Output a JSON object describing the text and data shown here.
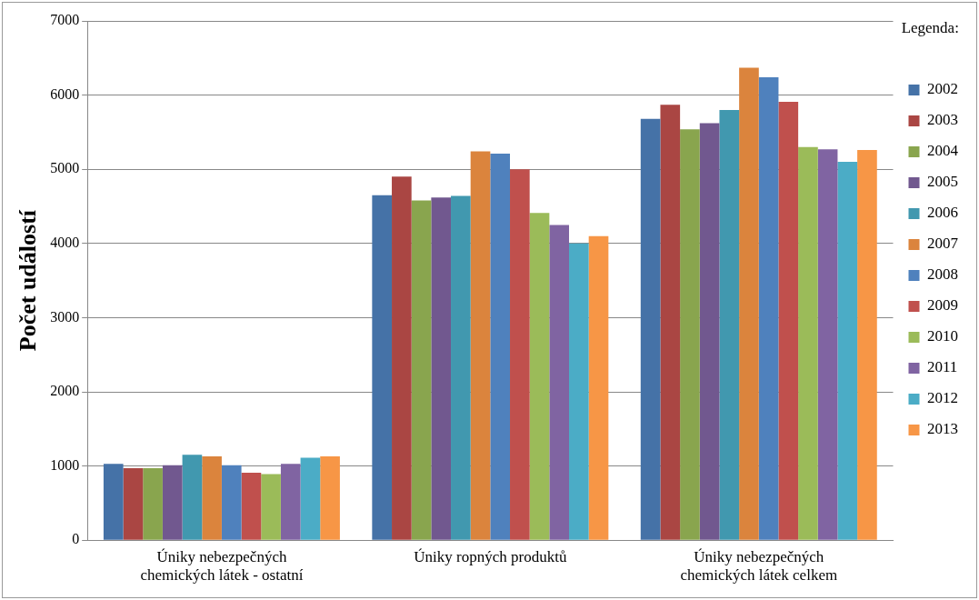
{
  "chart_data": {
    "type": "bar",
    "ylabel": "Počet událostí",
    "legend_title": "Legenda:",
    "categories": [
      "Úniky nebezpečných chemických látek - ostatní",
      "Úniky ropných produktů",
      "Úniky nebezpečných chemických látek celkem"
    ],
    "series": [
      {
        "name": "2002",
        "color": "#4572a7",
        "values": [
          1030,
          4650,
          5680
        ]
      },
      {
        "name": "2003",
        "color": "#aa4643",
        "values": [
          970,
          4900,
          5870
        ]
      },
      {
        "name": "2004",
        "color": "#89a54e",
        "values": [
          970,
          4580,
          5540
        ]
      },
      {
        "name": "2005",
        "color": "#71588f",
        "values": [
          1010,
          4620,
          5620
        ]
      },
      {
        "name": "2006",
        "color": "#4198af",
        "values": [
          1150,
          4640,
          5800
        ]
      },
      {
        "name": "2007",
        "color": "#db843d",
        "values": [
          1130,
          5240,
          6370
        ]
      },
      {
        "name": "2008",
        "color": "#4f81bd",
        "values": [
          1010,
          5210,
          6240
        ]
      },
      {
        "name": "2009",
        "color": "#c0504d",
        "values": [
          910,
          5000,
          5910
        ]
      },
      {
        "name": "2010",
        "color": "#9bbb59",
        "values": [
          890,
          4410,
          5300
        ]
      },
      {
        "name": "2011",
        "color": "#8064a2",
        "values": [
          1030,
          4250,
          5270
        ]
      },
      {
        "name": "2012",
        "color": "#4bacc6",
        "values": [
          1110,
          4000,
          5100
        ]
      },
      {
        "name": "2013",
        "color": "#f79646",
        "values": [
          1130,
          4100,
          5260
        ]
      }
    ],
    "ylim": [
      0,
      7000
    ],
    "yticks": [
      0,
      1000,
      2000,
      3000,
      4000,
      5000,
      6000,
      7000
    ],
    "grid": "y",
    "legend": "right"
  }
}
